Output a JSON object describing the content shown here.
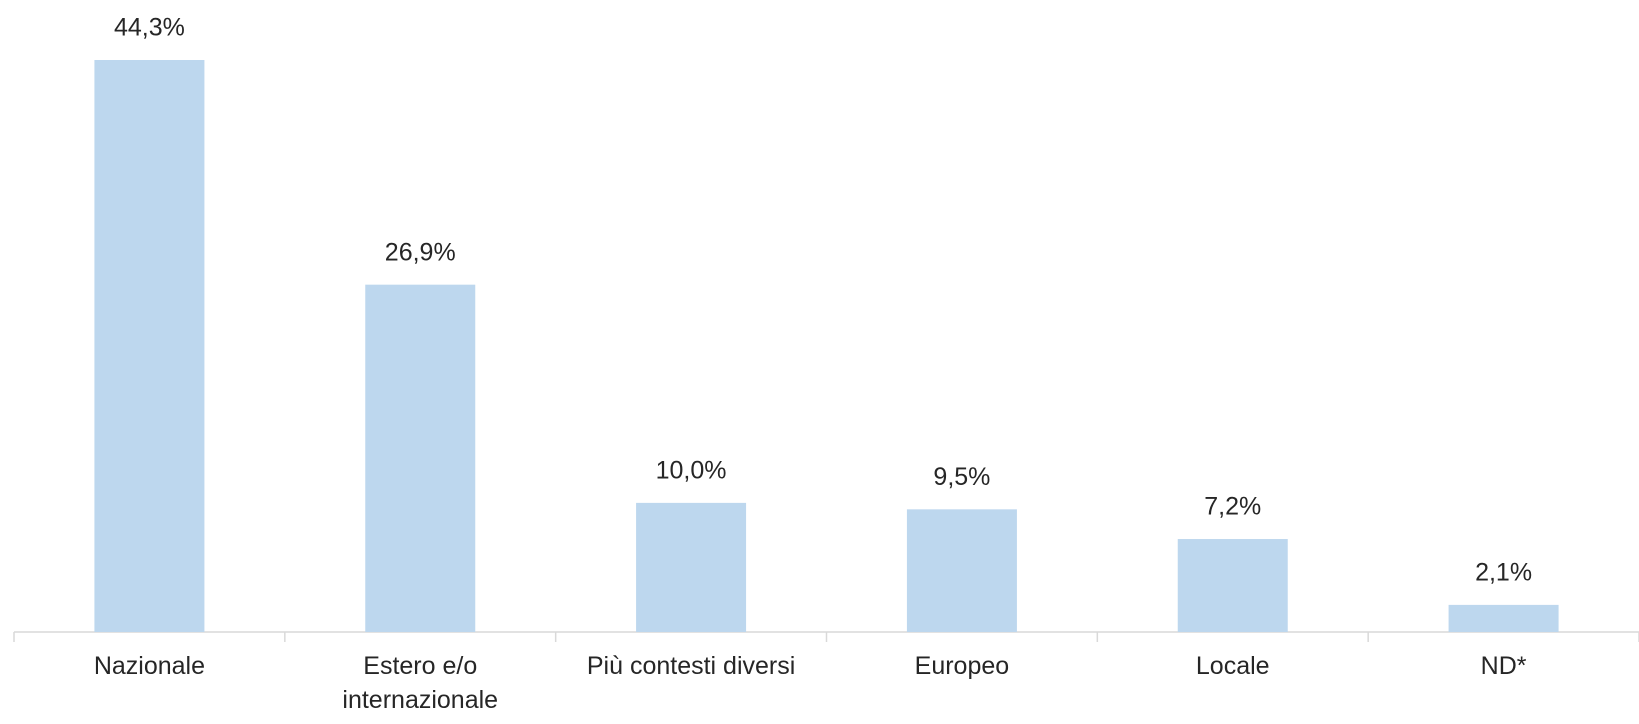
{
  "chart_data": {
    "type": "bar",
    "categories": [
      "Nazionale",
      "Estero e/o internazionale",
      "Più contesti diversi",
      "Europeo",
      "Locale",
      "ND*"
    ],
    "values": [
      44.3,
      26.9,
      10.0,
      9.5,
      7.2,
      2.1
    ],
    "value_labels": [
      "44,3%",
      "26,9%",
      "10,0%",
      "9,5%",
      "7,2%",
      "2,1%"
    ],
    "color": "#bdd7ee"
  }
}
